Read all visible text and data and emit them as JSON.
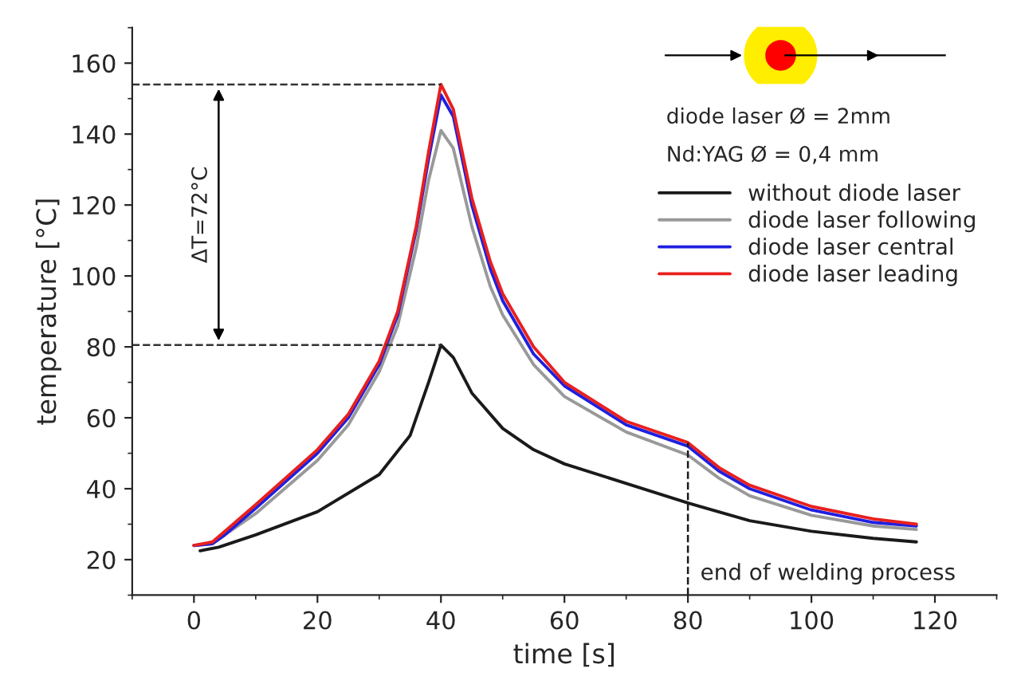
{
  "chart_data": {
    "type": "line",
    "xlabel": "time [s]",
    "ylabel": "temperature [°C]",
    "xlim": [
      -10,
      130
    ],
    "xticks": [
      0,
      20,
      40,
      60,
      80,
      100,
      120
    ],
    "ylim": [
      10,
      170
    ],
    "yticks": [
      20,
      40,
      60,
      80,
      100,
      120,
      140,
      160
    ],
    "grid": false,
    "legend": "top right",
    "line_style": "solid",
    "series": [
      {
        "name": "without diode laser",
        "color": "#1a1a1a",
        "x": [
          1,
          4,
          10,
          20,
          30,
          35,
          38,
          40,
          42,
          45,
          50,
          55,
          60,
          70,
          80,
          82,
          90,
          100,
          110,
          117
        ],
        "values": [
          22.5,
          23.5,
          27,
          33.5,
          44,
          55,
          70,
          80.5,
          77,
          67,
          57,
          51,
          47,
          41.5,
          36,
          35,
          31,
          28,
          26,
          25
        ]
      },
      {
        "name": "diode laser following",
        "color": "#999999",
        "x": [
          0,
          3,
          5,
          10,
          20,
          25,
          30,
          33,
          36,
          38,
          40,
          42,
          45,
          48,
          50,
          55,
          60,
          70,
          80,
          85,
          90,
          100,
          110,
          117
        ],
        "values": [
          24,
          24.5,
          27,
          33,
          48,
          58,
          73,
          86,
          108,
          127,
          141,
          136,
          114,
          97,
          89,
          75,
          66,
          56,
          49.5,
          43,
          38,
          32.5,
          29.5,
          28.5
        ]
      },
      {
        "name": "diode laser central",
        "color": "#1f1fe0",
        "x": [
          0,
          3,
          5,
          10,
          20,
          25,
          30,
          33,
          36,
          38,
          40,
          42,
          45,
          48,
          50,
          55,
          60,
          70,
          80,
          85,
          90,
          100,
          110,
          117
        ],
        "values": [
          24,
          24.5,
          27,
          34.5,
          50,
          60,
          75,
          89,
          113,
          133,
          151,
          145,
          120,
          102,
          93,
          78,
          69,
          58,
          52,
          45,
          40,
          34,
          30.5,
          29.5
        ]
      },
      {
        "name": "diode laser leading",
        "color": "#e8201e",
        "x": [
          0,
          3,
          5,
          10,
          20,
          25,
          30,
          33,
          36,
          38,
          40,
          42,
          45,
          48,
          50,
          55,
          60,
          70,
          80,
          85,
          90,
          100,
          110,
          117
        ],
        "values": [
          24,
          25,
          28,
          35.5,
          51,
          61,
          76,
          90,
          114,
          135,
          154,
          147,
          122,
          104,
          95,
          80,
          70,
          59,
          53,
          46,
          41,
          35,
          31.5,
          30
        ]
      }
    ],
    "ref_lines": [
      {
        "axis": "y",
        "value": 154,
        "line_style": "dashed",
        "color": "#333333"
      },
      {
        "axis": "y",
        "value": 80.5,
        "line_style": "dashed",
        "color": "#333333"
      },
      {
        "axis": "x",
        "value": 80,
        "line_style": "dashed",
        "color": "#1a1a1a"
      }
    ],
    "annotations": [
      "ΔT=72°C",
      "end of welding process",
      "diode laser Ø = 2mm",
      "Nd:YAG Ø = 0,4 mm"
    ]
  }
}
